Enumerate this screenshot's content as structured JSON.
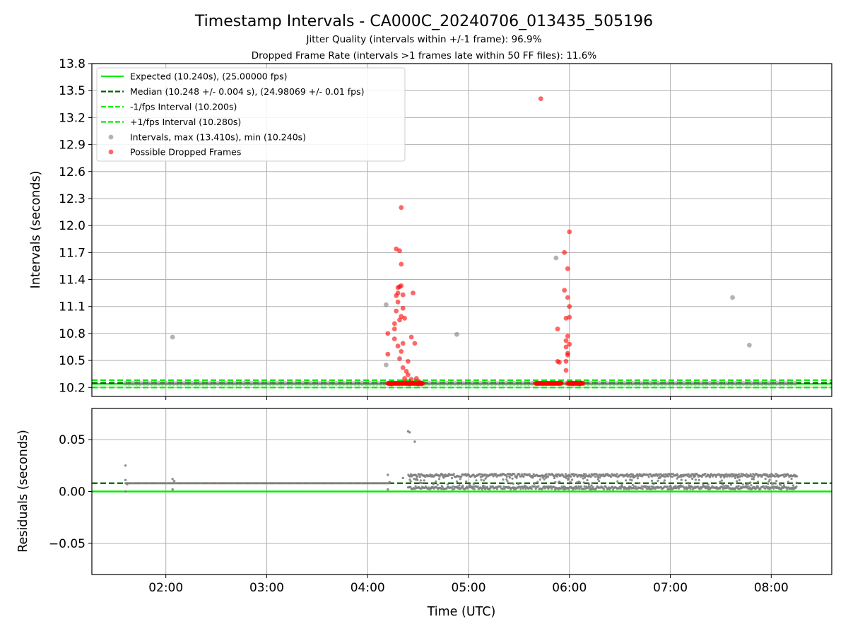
{
  "header": {
    "title": "Timestamp Intervals - CA000C_20240706_013435_505196",
    "subtitle1": "Jitter Quality (intervals within +/-1 frame): 96.9%",
    "subtitle2": "Dropped Frame Rate (intervals >1 frames late within 50 FF files): 11.6%"
  },
  "colors": {
    "expected": "#00ee00",
    "median": "#006400",
    "intervals": "#808080",
    "dropped": "#ff0000",
    "grid": "#b0b0b0"
  },
  "chart_data": [
    {
      "type": "scatter",
      "xlabel": "",
      "ylabel": "Intervals (seconds)",
      "xlim": [
        "01:16",
        "08:36"
      ],
      "ylim": [
        10.1,
        13.8
      ],
      "yticks": [
        10.2,
        10.5,
        10.8,
        11.1,
        11.4,
        11.7,
        12.0,
        12.3,
        12.6,
        12.9,
        13.2,
        13.5,
        13.8
      ],
      "xticks": [
        "02:00",
        "03:00",
        "04:00",
        "05:00",
        "06:00",
        "07:00",
        "08:00"
      ],
      "grid": true,
      "legend_position": "top-left",
      "legend": [
        "Expected (10.240s), (25.00000 fps)",
        "Median (10.248 +/- 0.004 s), (24.98069 +/- 0.01 fps)",
        "-1/fps Interval (10.200s)",
        "+1/fps Interval (10.280s)",
        "Intervals, max (13.410s), min (10.240s)",
        "Possible Dropped Frames"
      ],
      "reference_lines": {
        "expected": 10.24,
        "median": 10.248,
        "minus_one_frame": 10.2,
        "plus_one_frame": 10.28
      },
      "baseline_series": {
        "name": "Intervals, max (13.410s), min (10.240s)",
        "value": 10.245,
        "from": "01:36",
        "to": "08:15"
      },
      "gray_points": [
        [
          "02:04",
          10.76
        ],
        [
          "04:11",
          11.12
        ],
        [
          "04:11",
          10.45
        ],
        [
          "04:53",
          10.79
        ],
        [
          "05:52",
          11.64
        ],
        [
          "07:37",
          11.2
        ],
        [
          "07:47",
          10.67
        ]
      ],
      "red_points": [
        [
          "04:12",
          10.8
        ],
        [
          "04:12",
          10.57
        ],
        [
          "04:14",
          10.24
        ],
        [
          "04:16",
          10.74
        ],
        [
          "04:16",
          10.85
        ],
        [
          "04:16",
          10.91
        ],
        [
          "04:17",
          11.05
        ],
        [
          "04:17",
          11.22
        ],
        [
          "04:17",
          11.74
        ],
        [
          "04:18",
          11.15
        ],
        [
          "04:18",
          11.25
        ],
        [
          "04:18",
          11.31
        ],
        [
          "04:18",
          10.66
        ],
        [
          "04:19",
          11.72
        ],
        [
          "04:19",
          10.95
        ],
        [
          "04:19",
          10.52
        ],
        [
          "04:19",
          11.32
        ],
        [
          "04:20",
          11.57
        ],
        [
          "04:20",
          12.2
        ],
        [
          "04:20",
          11.33
        ],
        [
          "04:20",
          10.99
        ],
        [
          "04:20",
          10.6
        ],
        [
          "04:21",
          11.08
        ],
        [
          "04:21",
          10.69
        ],
        [
          "04:21",
          10.42
        ],
        [
          "04:21",
          11.23
        ],
        [
          "04:22",
          10.97
        ],
        [
          "04:22",
          10.3
        ],
        [
          "04:22",
          10.26
        ],
        [
          "04:23",
          10.38
        ],
        [
          "04:24",
          10.49
        ],
        [
          "04:24",
          10.34
        ],
        [
          "04:25",
          10.24
        ],
        [
          "04:26",
          10.29
        ],
        [
          "04:26",
          10.76
        ],
        [
          "04:27",
          11.25
        ],
        [
          "04:27",
          10.25
        ],
        [
          "04:28",
          10.69
        ],
        [
          "04:29",
          10.3
        ],
        [
          "04:30",
          10.24
        ],
        [
          "04:31",
          10.26
        ],
        [
          "04:32",
          10.24
        ],
        [
          "05:43",
          13.41
        ],
        [
          "05:53",
          10.49
        ],
        [
          "05:53",
          10.85
        ],
        [
          "05:54",
          10.48
        ],
        [
          "05:55",
          10.25
        ],
        [
          "05:57",
          11.7
        ],
        [
          "05:57",
          11.28
        ],
        [
          "05:58",
          10.39
        ],
        [
          "05:58",
          10.72
        ],
        [
          "05:58",
          10.49
        ],
        [
          "05:58",
          10.97
        ],
        [
          "05:58",
          10.65
        ],
        [
          "05:59",
          11.52
        ],
        [
          "05:59",
          11.2
        ],
        [
          "05:59",
          10.77
        ],
        [
          "05:59",
          10.56
        ],
        [
          "05:59",
          10.58
        ],
        [
          "06:00",
          11.93
        ],
        [
          "06:00",
          10.98
        ],
        [
          "06:00",
          10.68
        ],
        [
          "06:00",
          11.1
        ],
        [
          "06:01",
          10.25
        ],
        [
          "06:02",
          10.24
        ],
        [
          "06:04",
          10.25
        ],
        [
          "06:06",
          10.24
        ],
        [
          "06:07",
          10.25
        ]
      ],
      "red_cluster_ranges": [
        [
          "04:12",
          "04:33"
        ],
        [
          "05:40",
          "05:55"
        ],
        [
          "05:59",
          "06:08"
        ]
      ]
    },
    {
      "type": "scatter",
      "xlabel": "Time (UTC)",
      "ylabel": "Residuals (seconds)",
      "xlim": [
        "01:16",
        "08:36"
      ],
      "ylim": [
        -0.08,
        0.08
      ],
      "yticks": [
        0.05,
        0.0,
        -0.05
      ],
      "ytick_labels": [
        "0.05",
        "0.00",
        "−0.05"
      ],
      "xticks": [
        "02:00",
        "03:00",
        "04:00",
        "05:00",
        "06:00",
        "07:00",
        "08:00"
      ],
      "grid": true,
      "reference_lines": {
        "expected": 0.0,
        "median": 0.008
      },
      "stable_residual": {
        "value": 0.008,
        "from": "01:36",
        "to": "04:13"
      },
      "jitter_band": {
        "low": 0.002,
        "high": 0.017,
        "from": "04:24",
        "to": "08:15"
      },
      "outlier_points": [
        [
          "01:36",
          0.025
        ],
        [
          "01:36",
          0.011
        ],
        [
          "01:36",
          0.0
        ],
        [
          "01:37",
          0.007
        ],
        [
          "02:04",
          0.012
        ],
        [
          "02:04",
          0.002
        ],
        [
          "02:05",
          0.01
        ],
        [
          "04:12",
          0.016
        ],
        [
          "04:12",
          0.002
        ],
        [
          "04:13",
          0.009
        ],
        [
          "04:21",
          0.013
        ],
        [
          "04:24",
          0.058
        ],
        [
          "04:25",
          0.057
        ],
        [
          "04:28",
          0.048
        ]
      ]
    }
  ]
}
